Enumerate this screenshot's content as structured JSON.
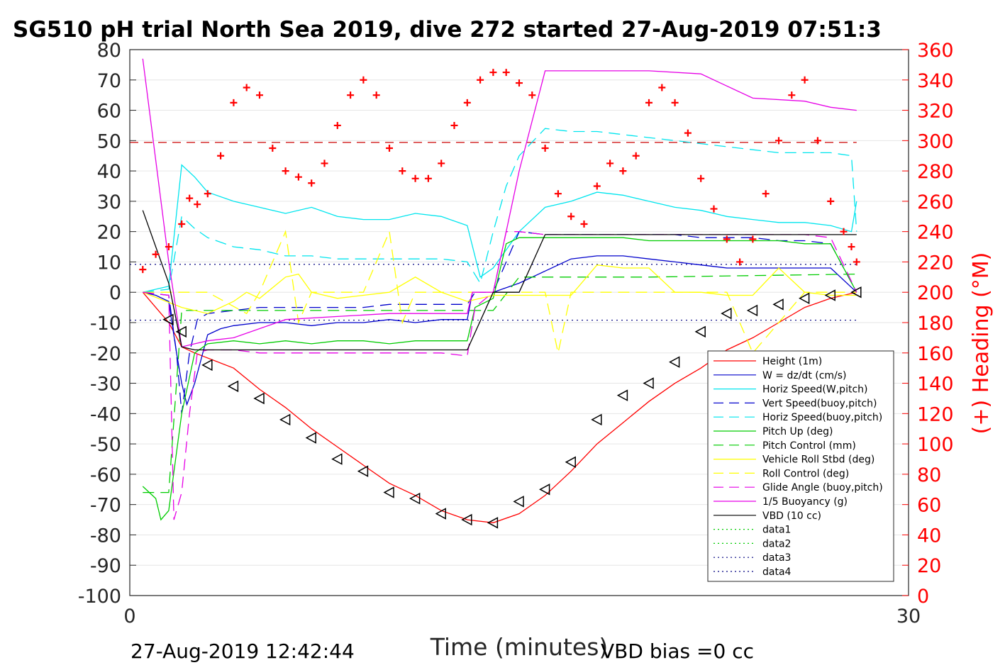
{
  "chart_data": {
    "type": "line",
    "title": "SG510 pH trial North Sea 2019, dive 272 started 27-Aug-2019 07:51:3",
    "xlabel": "Time (minutes)",
    "ylabel_right": "(+) Heading (°M)",
    "xlim": [
      0,
      30
    ],
    "ylim": [
      -100,
      80
    ],
    "ylim_right": [
      0,
      360
    ],
    "x_ticks": [
      "0",
      "30"
    ],
    "y_ticks": [
      "80",
      "70",
      "60",
      "50",
      "40",
      "30",
      "20",
      "10",
      "0",
      "-10",
      "-20",
      "-30",
      "-40",
      "-50",
      "-60",
      "-70",
      "-80",
      "-90",
      "-100"
    ],
    "y_ticks_values": [
      80,
      70,
      60,
      50,
      40,
      30,
      20,
      10,
      0,
      -10,
      -20,
      -30,
      -40,
      -50,
      -60,
      -70,
      -80,
      -90,
      -100
    ],
    "y_right_ticks": [
      "360",
      "340",
      "320",
      "300",
      "280",
      "260",
      "240",
      "220",
      "200",
      "180",
      "160",
      "140",
      "120",
      "100",
      "80",
      "60",
      "40",
      "20",
      "0"
    ],
    "y_right_ticks_values": [
      360,
      340,
      320,
      300,
      280,
      260,
      240,
      220,
      200,
      180,
      160,
      140,
      120,
      100,
      80,
      60,
      40,
      20,
      0
    ],
    "grid": true,
    "legend_position": "bottom-right",
    "footer_left": "27-Aug-2019 12:42:44",
    "footer_right": "VBD bias =0 cc",
    "reference_lines": [
      {
        "y": 49.4,
        "color": "#cc0000",
        "style": "dashed"
      },
      {
        "y": 9.2,
        "color": "#000080",
        "style": "dotted"
      },
      {
        "y": -9.2,
        "color": "#000080",
        "style": "dotted"
      }
    ],
    "series": [
      {
        "name": "Height (1m)",
        "color": "#ff0000",
        "style": "solid",
        "x": [
          0.5,
          1.5,
          2.0,
          2.5,
          4.0,
          5.0,
          6.0,
          7.0,
          8.0,
          9.0,
          10.0,
          11.0,
          12.0,
          13.0,
          14.0,
          15.0,
          16.0,
          17.0,
          18.0,
          19.0,
          20.0,
          21.0,
          22.0,
          23.0,
          24.0,
          25.0,
          26.0,
          27.0,
          28.0
        ],
        "y": [
          0,
          -10,
          -18,
          -20,
          -25,
          -32,
          -38,
          -45,
          -51,
          -57,
          -63,
          -67,
          -72,
          -75,
          -76,
          -73,
          -67,
          -59,
          -50,
          -43,
          -36,
          -30,
          -25,
          -19,
          -15,
          -10,
          -5,
          -2,
          0
        ]
      },
      {
        "name": "W = dz/dt (cm/s)",
        "color": "#0000cc",
        "style": "solid",
        "x": [
          0.5,
          1.0,
          1.5,
          1.8,
          2.0,
          2.2,
          2.5,
          3.0,
          3.5,
          4.0,
          5.0,
          6.0,
          7.0,
          8.0,
          9.0,
          10.0,
          11.0,
          12.0,
          13.0,
          13.2,
          14.0,
          15.0,
          16.0,
          17.0,
          18.0,
          19.0,
          20.0,
          21.0,
          22.0,
          23.0,
          24.0,
          25.0,
          26.0,
          27.0,
          28.0
        ],
        "y": [
          0,
          -1,
          -3,
          -20,
          -30,
          -37,
          -30,
          -14,
          -12,
          -11,
          -10,
          -10,
          -11,
          -10,
          -10,
          -9,
          -10,
          -9,
          -9,
          0,
          0,
          3,
          7,
          11,
          12,
          12,
          11,
          10,
          9,
          8,
          8,
          8,
          8,
          8,
          0
        ]
      },
      {
        "name": "Horiz Speed(W,pitch)",
        "color": "#00e5ee",
        "style": "solid",
        "x": [
          0.5,
          1.5,
          2.0,
          2.5,
          3.0,
          4.0,
          5.0,
          6.0,
          7.0,
          8.0,
          9.0,
          10.0,
          11.0,
          12.0,
          13.0,
          13.5,
          14.0,
          15.0,
          16.0,
          17.0,
          18.0,
          19.0,
          20.0,
          21.0,
          22.0,
          23.0,
          24.0,
          25.0,
          26.0,
          27.0,
          27.8,
          28.0
        ],
        "y": [
          0,
          2,
          42,
          38,
          33,
          30,
          28,
          26,
          28,
          25,
          24,
          24,
          26,
          25,
          22,
          5,
          8,
          20,
          28,
          30,
          33,
          32,
          30,
          28,
          27,
          25,
          24,
          23,
          23,
          22,
          20,
          30
        ]
      },
      {
        "name": "Vert Speed(buoy,pitch)",
        "color": "#0000cc",
        "style": "dashed",
        "x": [
          0.5,
          1.5,
          1.8,
          2.0,
          2.3,
          2.6,
          3.0,
          4.0,
          5.0,
          6.0,
          7.0,
          8.0,
          9.0,
          10.0,
          11.0,
          12.0,
          13.0,
          13.3,
          14.0,
          15.0,
          16.0,
          17.0,
          18.0,
          19.0,
          20.0,
          21.0,
          22.0,
          23.0,
          24.0,
          25.0,
          26.0,
          27.0,
          28.0
        ],
        "y": [
          0,
          -1,
          -20,
          -40,
          -20,
          -9,
          -7,
          -6,
          -5,
          -5,
          -5,
          -5,
          -5,
          -4,
          -4,
          -4,
          -4,
          0,
          0,
          20,
          19,
          19,
          19,
          19,
          19,
          19,
          18,
          18,
          18,
          17,
          17,
          16,
          0
        ]
      },
      {
        "name": "Horiz Speed(buoy,pitch)",
        "color": "#00e5ee",
        "style": "dashed",
        "x": [
          0.5,
          1.5,
          2.0,
          2.5,
          3.0,
          4.0,
          5.0,
          6.0,
          7.0,
          8.0,
          9.0,
          10.0,
          11.0,
          12.0,
          13.0,
          13.5,
          14.0,
          14.5,
          15.0,
          16.0,
          17.0,
          18.0,
          19.0,
          20.0,
          21.0,
          22.0,
          23.0,
          24.0,
          25.0,
          26.0,
          27.0,
          27.8,
          28.0
        ],
        "y": [
          0,
          1,
          25,
          21,
          18,
          15,
          14,
          12,
          12,
          11,
          11,
          11,
          11,
          11,
          10,
          3,
          20,
          35,
          45,
          54,
          53,
          53,
          52,
          51,
          50,
          49,
          48,
          47,
          46,
          46,
          46,
          45,
          20
        ]
      },
      {
        "name": "Pitch Up (deg)",
        "color": "#00cc00",
        "style": "solid",
        "x": [
          0.5,
          1.0,
          1.2,
          1.5,
          2.0,
          2.5,
          3.0,
          4.0,
          5.0,
          6.0,
          7.0,
          8.0,
          9.0,
          10.0,
          11.0,
          12.0,
          13.0,
          13.3,
          14.0,
          14.5,
          15.0,
          16.0,
          17.0,
          18.0,
          19.0,
          20.0,
          21.0,
          22.0,
          23.0,
          24.0,
          25.0,
          26.0,
          27.0,
          28.0
        ],
        "y": [
          -64,
          -68,
          -75,
          -72,
          -40,
          -20,
          -17,
          -16,
          -17,
          -16,
          -17,
          -16,
          -16,
          -17,
          -16,
          -16,
          -16,
          -5,
          -2,
          16,
          18,
          18,
          18,
          18,
          18,
          17,
          17,
          17,
          17,
          17,
          17,
          16,
          16,
          0
        ]
      },
      {
        "name": "Pitch Control (mm)",
        "color": "#00cc00",
        "style": "dashed",
        "x": [
          0.5,
          1.5,
          2.0,
          3.0,
          13.0,
          13.5,
          14.0,
          15.0,
          20.0,
          28.0
        ],
        "y": [
          -66,
          -66,
          -6,
          -6,
          -6,
          -6,
          -6,
          5,
          5,
          6
        ]
      },
      {
        "name": "Vehicle Roll Stbd (deg)",
        "color": "#ffff00",
        "style": "solid",
        "x": [
          0.5,
          2.0,
          3.0,
          4.0,
          4.5,
          5.0,
          6.0,
          6.5,
          7.0,
          8.0,
          9.0,
          10.0,
          11.0,
          12.0,
          13.0,
          14.0,
          15.0,
          16.0,
          17.0,
          18.0,
          19.0,
          20.0,
          21.0,
          22.0,
          23.0,
          24.0,
          25.0,
          26.0,
          27.0,
          28.0
        ],
        "y": [
          0,
          -5,
          -7,
          -3,
          0,
          -2,
          5,
          6,
          0,
          -2,
          -1,
          0,
          5,
          0,
          -3,
          -1,
          -1,
          -1,
          -1,
          9,
          8,
          8,
          0,
          0,
          -1,
          -1,
          8,
          0,
          -1,
          -1
        ]
      },
      {
        "name": "Roll Control (deg)",
        "color": "#ffff00",
        "style": "dashed",
        "x": [
          0.5,
          3.0,
          4.5,
          5.0,
          6.0,
          6.5,
          7.0,
          9.0,
          10.0,
          10.5,
          11.0,
          12.0,
          16.0,
          16.5,
          17.0,
          20.0,
          23.0,
          24.0,
          26.0,
          28.0
        ],
        "y": [
          0,
          0,
          -7,
          0,
          20,
          -10,
          0,
          0,
          20,
          -10,
          0,
          0,
          0,
          -20,
          0,
          0,
          0,
          -20,
          0,
          0
        ]
      },
      {
        "name": "Glide Angle (buoy,pitch)",
        "color": "#e600e6",
        "style": "dashed",
        "x": [
          0.5,
          1.5,
          1.7,
          2.0,
          2.3,
          2.6,
          3.0,
          4.0,
          5.0,
          6.0,
          7.0,
          8.0,
          9.0,
          10.0,
          11.0,
          12.0,
          13.0,
          13.3,
          14.0,
          14.5,
          15.0,
          16.0,
          17.0,
          18.0,
          19.0,
          20.0,
          21.0,
          22.0,
          23.0,
          24.0,
          25.0,
          26.0,
          27.0,
          28.0
        ],
        "y": [
          0,
          -1,
          -75,
          -66,
          -40,
          -20,
          -19,
          -19,
          -20,
          -20,
          -20,
          -20,
          -20,
          -20,
          -20,
          -20,
          -21,
          -5,
          0,
          20,
          20,
          19,
          19,
          19,
          19,
          19,
          19,
          19,
          19,
          19,
          19,
          19,
          18,
          0
        ]
      },
      {
        "name": "1/5 Buoyancy (g)",
        "color": "#e600e6",
        "style": "solid",
        "x": [
          0.5,
          1.5,
          2.0,
          2.5,
          3.0,
          4.0,
          6.0,
          8.0,
          10.0,
          12.0,
          13.0,
          13.2,
          14.0,
          15.0,
          16.0,
          18.0,
          20.0,
          22.0,
          24.0,
          26.0,
          27.0,
          28.0
        ],
        "y": [
          77,
          10,
          -18,
          -17,
          -16,
          -15,
          -9,
          -8,
          -7,
          -7,
          -7,
          0,
          0,
          40,
          73,
          73,
          73,
          72,
          64,
          63,
          61,
          60
        ]
      },
      {
        "name": "VBD (10 cc)",
        "color": "#000000",
        "style": "solid",
        "x": [
          0.5,
          1.5,
          2.0,
          2.5,
          3.0,
          4.0,
          6.0,
          8.0,
          10.0,
          12.0,
          13.0,
          14.0,
          15.0,
          16.0,
          18.0,
          20.0,
          22.0,
          24.0,
          26.0,
          28.0
        ],
        "y": [
          27,
          3,
          -18,
          -19,
          -19,
          -19,
          -19,
          -19,
          -19,
          -19,
          -19,
          0,
          0,
          19,
          19,
          19,
          19,
          19,
          19,
          19
        ]
      }
    ],
    "heading_series": {
      "name": "(+) Heading",
      "color": "#ff0000",
      "marker": "+",
      "axis": "right",
      "x": [
        0.5,
        1.0,
        1.5,
        2.0,
        2.3,
        2.6,
        3.0,
        3.5,
        4.0,
        4.5,
        5.0,
        5.5,
        6.0,
        6.5,
        7.0,
        7.5,
        8.0,
        8.5,
        9.0,
        9.5,
        10.0,
        10.5,
        11.0,
        11.5,
        12.0,
        12.5,
        13.0,
        13.5,
        14.0,
        14.5,
        15.0,
        15.5,
        16.0,
        16.5,
        17.0,
        17.5,
        18.0,
        18.5,
        19.0,
        19.5,
        20.0,
        20.5,
        21.0,
        21.5,
        22.0,
        22.5,
        23.0,
        23.5,
        24.0,
        24.5,
        25.0,
        25.5,
        26.0,
        26.5,
        27.0,
        27.5,
        27.8,
        28.0
      ],
      "y": [
        215,
        225,
        230,
        245,
        262,
        258,
        265,
        290,
        325,
        335,
        330,
        295,
        280,
        276,
        272,
        285,
        310,
        330,
        340,
        330,
        295,
        280,
        275,
        275,
        285,
        310,
        325,
        340,
        345,
        345,
        338,
        330,
        295,
        265,
        250,
        245,
        270,
        285,
        280,
        290,
        325,
        335,
        325,
        305,
        275,
        255,
        235,
        220,
        235,
        265,
        300,
        330,
        340,
        300,
        260,
        240,
        230,
        220
      ]
    },
    "triangle_markers": {
      "x": [
        1.5,
        2.0,
        3.0,
        4.0,
        5.0,
        6.0,
        7.0,
        8.0,
        9.0,
        10.0,
        11.0,
        12.0,
        13.0,
        14.0,
        15.0,
        16.0,
        17.0,
        18.0,
        19.0,
        20.0,
        21.0,
        22.0,
        23.0,
        24.0,
        25.0,
        26.0,
        27.0,
        28.0
      ],
      "y": [
        -9,
        -13,
        -24,
        -31,
        -35,
        -42,
        -48,
        -55,
        -59,
        -66,
        -68,
        -73,
        -75,
        -76,
        -69,
        -65,
        -56,
        -42,
        -34,
        -30,
        -23,
        -13,
        -7,
        -6,
        -4,
        -2,
        -1,
        0
      ]
    }
  }
}
